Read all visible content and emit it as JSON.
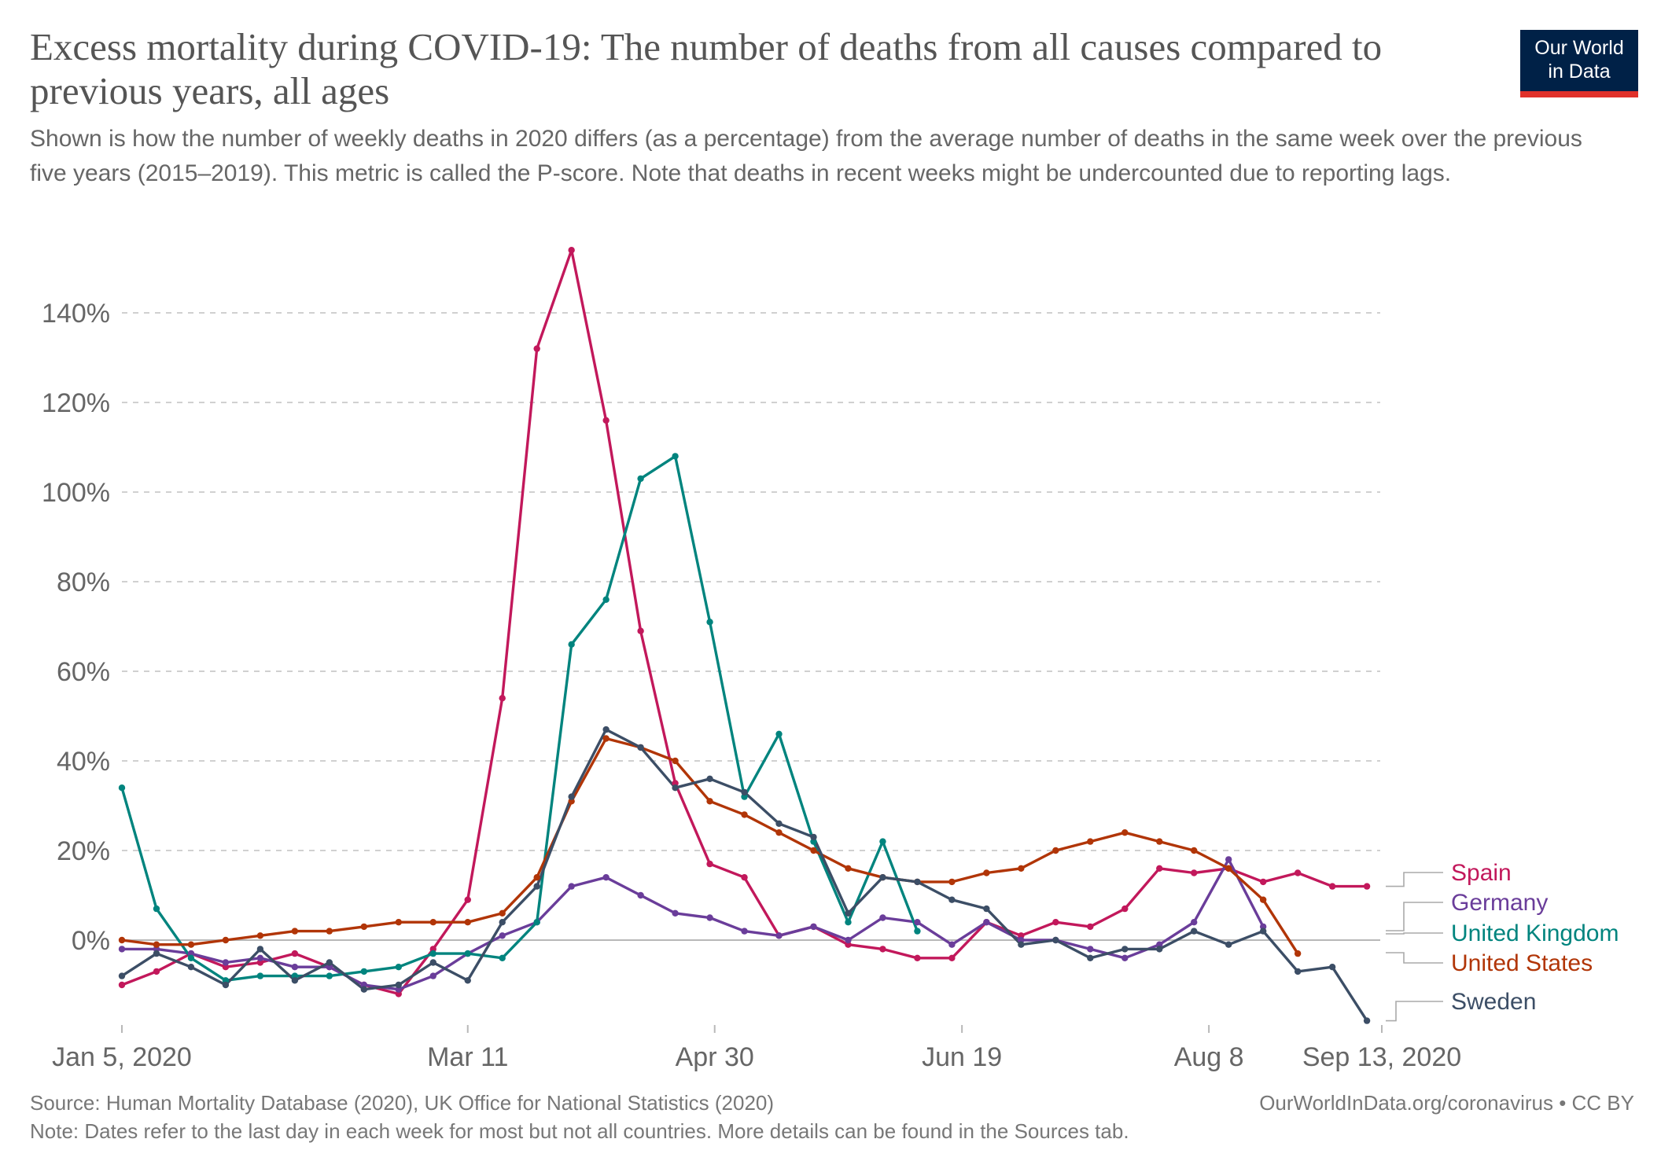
{
  "header": {
    "title": "Excess mortality during COVID-19: The number of deaths from all causes compared to previous years, all ages",
    "subtitle": "Shown is how the number of weekly deaths in 2020 differs (as a percentage) from the average number of deaths in the same week over the previous five years (2015–2019). This metric is called the P-score. Note that deaths in recent weeks might be undercounted due to reporting lags."
  },
  "logo": {
    "line1": "Our World",
    "line2": "in Data",
    "bg_color": "#002147",
    "accent_color": "#e0312a"
  },
  "footer": {
    "source": "Source: Human Mortality Database (2020), UK Office for National Statistics (2020)",
    "url": "OurWorldInData.org/coronavirus • CC BY",
    "note": "Note: Dates refer to the last day in each week for most but not all countries. More details can be found in the Sources tab."
  },
  "chart_data": {
    "type": "line",
    "title": "Excess mortality during COVID-19: The number of deaths from all causes compared to previous years, all ages",
    "xlabel": "",
    "ylabel": "",
    "ylim": [
      -18,
      155
    ],
    "y_ticks": [
      0,
      20,
      40,
      60,
      80,
      100,
      120,
      140
    ],
    "y_tick_labels": [
      "0%",
      "20%",
      "40%",
      "60%",
      "80%",
      "100%",
      "120%",
      "140%"
    ],
    "x_ticks": [
      {
        "week": 1,
        "label": "Jan 5, 2020"
      },
      {
        "week": 11,
        "label": "Mar 11"
      },
      {
        "week": 18.14,
        "label": "Apr 30"
      },
      {
        "week": 25.29,
        "label": "Jun 19"
      },
      {
        "week": 32.43,
        "label": "Aug 8"
      },
      {
        "week": 37.43,
        "label": "Sep 13, 2020"
      }
    ],
    "x_domain": [
      1,
      37.43
    ],
    "series": [
      {
        "name": "Spain",
        "color": "#c2185b",
        "weeks": [
          1,
          2,
          3,
          4,
          5,
          6,
          7,
          8,
          9,
          10,
          11,
          12,
          13,
          14,
          15,
          16,
          17,
          18,
          19,
          20,
          21,
          22,
          23,
          24,
          25,
          26,
          27,
          28,
          29,
          30,
          31,
          32,
          33,
          34,
          35,
          36,
          37,
          38
        ],
        "values": [
          -10,
          -7,
          -3,
          -6,
          -5,
          -3,
          -6,
          -10,
          -12,
          -2,
          9,
          54,
          132,
          154,
          116,
          69,
          35,
          17,
          14,
          1,
          3,
          -1,
          -2,
          -4,
          -4,
          4,
          1,
          4,
          3,
          7,
          16,
          15,
          16,
          13,
          15,
          12,
          12,
          null
        ]
      },
      {
        "name": "Germany",
        "color": "#6a3d9a",
        "weeks": [
          1,
          2,
          3,
          4,
          5,
          6,
          7,
          8,
          9,
          10,
          11,
          12,
          13,
          14,
          15,
          16,
          17,
          18,
          19,
          20,
          21,
          22,
          23,
          24,
          25,
          26,
          27,
          28,
          29,
          30,
          31,
          32,
          33,
          34,
          35,
          36,
          37,
          38
        ],
        "values": [
          -2,
          -2,
          -3,
          -5,
          -4,
          -6,
          -6,
          -10,
          -11,
          -8,
          -3,
          1,
          4,
          12,
          14,
          10,
          6,
          5,
          2,
          1,
          3,
          0,
          5,
          4,
          -1,
          4,
          0,
          0,
          -2,
          -4,
          -1,
          4,
          18,
          3,
          null,
          null,
          null,
          null
        ]
      },
      {
        "name": "United Kingdom",
        "color": "#00847e",
        "weeks": [
          1,
          2,
          3,
          4,
          5,
          6,
          7,
          8,
          9,
          10,
          11,
          12,
          13,
          14,
          15,
          16,
          17,
          18,
          19,
          20,
          21,
          22,
          23,
          24,
          25,
          26,
          27,
          28,
          29,
          30,
          31,
          32,
          33,
          34,
          35,
          36,
          37,
          38
        ],
        "values": [
          34,
          7,
          -4,
          -9,
          -8,
          -8,
          -8,
          -7,
          -6,
          -3,
          -3,
          -4,
          4,
          66,
          76,
          103,
          108,
          71,
          32,
          46,
          22,
          4,
          22,
          2,
          null,
          null,
          null,
          null,
          null,
          null,
          null,
          null,
          null,
          null,
          null,
          null,
          null,
          null
        ]
      },
      {
        "name": "United States",
        "color": "#b13507",
        "weeks": [
          1,
          2,
          3,
          4,
          5,
          6,
          7,
          8,
          9,
          10,
          11,
          12,
          13,
          14,
          15,
          16,
          17,
          18,
          19,
          20,
          21,
          22,
          23,
          24,
          25,
          26,
          27,
          28,
          29,
          30,
          31,
          32,
          33,
          34,
          35,
          36,
          37,
          38
        ],
        "values": [
          0,
          -1,
          -1,
          0,
          1,
          2,
          2,
          3,
          4,
          4,
          4,
          6,
          14,
          31,
          45,
          43,
          40,
          31,
          28,
          24,
          20,
          16,
          14,
          13,
          13,
          15,
          16,
          20,
          22,
          24,
          22,
          20,
          16,
          9,
          -3,
          null,
          null,
          null
        ]
      },
      {
        "name": "Sweden",
        "color": "#3c4e66",
        "weeks": [
          1,
          2,
          3,
          4,
          5,
          6,
          7,
          8,
          9,
          10,
          11,
          12,
          13,
          14,
          15,
          16,
          17,
          18,
          19,
          20,
          21,
          22,
          23,
          24,
          25,
          26,
          27,
          28,
          29,
          30,
          31,
          32,
          33,
          34,
          35,
          36,
          37,
          38
        ],
        "values": [
          -8,
          -3,
          -6,
          -10,
          -2,
          -9,
          -5,
          -11,
          -10,
          -5,
          -9,
          4,
          12,
          32,
          47,
          43,
          34,
          36,
          33,
          26,
          23,
          6,
          14,
          13,
          9,
          7,
          -1,
          0,
          -4,
          -2,
          -2,
          2,
          -1,
          2,
          -7,
          -6,
          -18,
          null
        ]
      }
    ],
    "legend": {
      "position": "right",
      "items": [
        "Spain",
        "Germany",
        "United Kingdom",
        "United States",
        "Sweden"
      ]
    }
  }
}
